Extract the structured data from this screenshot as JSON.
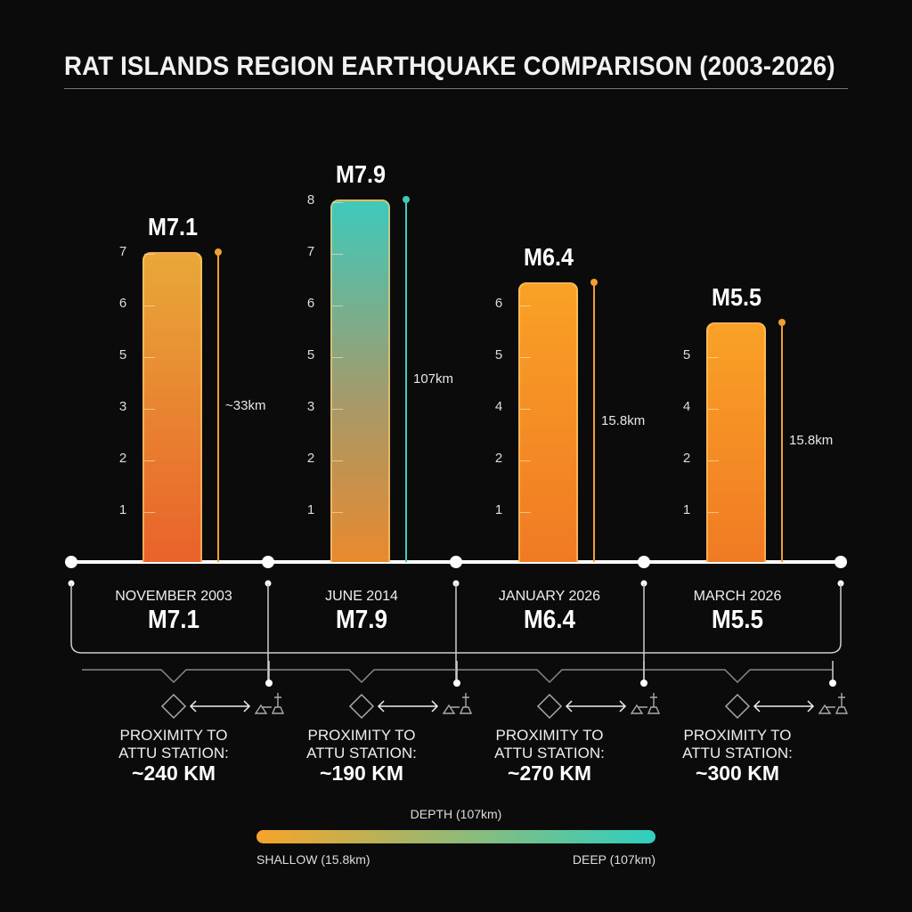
{
  "chart_data": {
    "type": "bar",
    "title": "RAT ISLANDS REGION EARTHQUAKE COMPARISON (2003-2026)",
    "categories": [
      "NOVEMBER 2003",
      "JUNE 2014",
      "JANUARY 2026",
      "MARCH 2026"
    ],
    "values": [
      7.1,
      7.9,
      6.4,
      5.5
    ],
    "value_labels": [
      "M7.1",
      "M7.9",
      "M6.4",
      "M5.5"
    ],
    "depth_labels": [
      "~33km",
      "107km",
      "15.8km",
      "15.8km"
    ],
    "tick_labels": [
      [
        "1",
        "2",
        "3",
        "5",
        "6",
        "7"
      ],
      [
        "1",
        "2",
        "3",
        "5",
        "6",
        "7",
        "8"
      ],
      [
        "1",
        "2",
        "4",
        "5",
        "6"
      ],
      [
        "1",
        "2",
        "4",
        "5"
      ]
    ],
    "proximity_heading": [
      "PROXIMITY TO",
      "ATTU STATION:"
    ],
    "proximity_values": [
      "~240 KM",
      "~190 KM",
      "~270 KM",
      "~300 KM"
    ],
    "bar_colors": [
      [
        "#e8a838",
        "#e9622a"
      ],
      [
        "#3ec9bb",
        "#e9892e"
      ],
      [
        "#f9a126",
        "#f07a24"
      ],
      [
        "#f9a126",
        "#f07a24"
      ]
    ],
    "legend": {
      "title": "DEPTH (107km)",
      "left_label": "SHALLOW (15.8km)",
      "right_label": "DEEP (107km)",
      "gradient": [
        "#f7a42a",
        "#2fcfc0"
      ]
    },
    "icons": [
      "epicenter-diamond-icon",
      "double-arrow-icon",
      "seismic-station-icon"
    ]
  }
}
